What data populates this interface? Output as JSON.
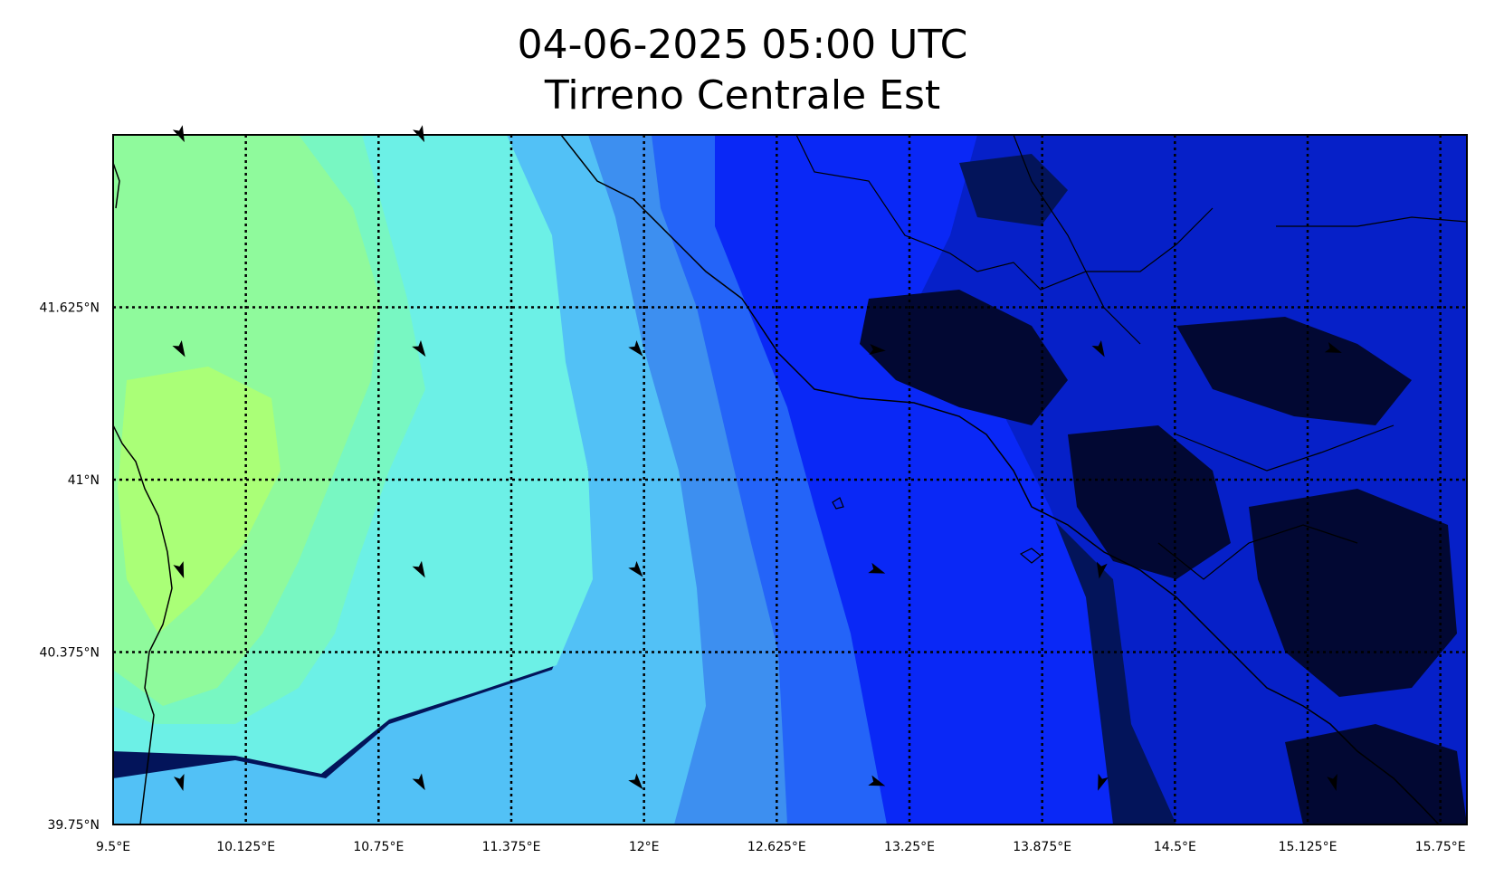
{
  "title": {
    "line1": "04-06-2025 05:00 UTC",
    "line2": "Tirreno Centrale Est"
  },
  "map": {
    "lon_range": [
      9.5,
      15.875
    ],
    "lat_range": [
      39.75,
      42.25
    ],
    "lon_ticks": [
      {
        "value": 9.5,
        "label": "9.5°E"
      },
      {
        "value": 10.125,
        "label": "10.125°E"
      },
      {
        "value": 10.75,
        "label": "10.75°E"
      },
      {
        "value": 11.375,
        "label": "11.375°E"
      },
      {
        "value": 12.0,
        "label": "12°E"
      },
      {
        "value": 12.625,
        "label": "12.625°E"
      },
      {
        "value": 13.25,
        "label": "13.25°E"
      },
      {
        "value": 13.875,
        "label": "13.875°E"
      },
      {
        "value": 14.5,
        "label": "14.5°E"
      },
      {
        "value": 15.125,
        "label": "15.125°E"
      },
      {
        "value": 15.75,
        "label": "15.75°E"
      }
    ],
    "lat_ticks": [
      {
        "value": 41.625,
        "label": "41.625°N"
      },
      {
        "value": 41.0,
        "label": "41°N"
      },
      {
        "value": 40.375,
        "label": "40.375°N"
      },
      {
        "value": 39.75,
        "label": "39.75°N"
      }
    ],
    "colors": {
      "band_1": "#aaff77",
      "band_2": "#8ffa9c",
      "band_3": "#78f7c2",
      "band_4": "#6cf0e6",
      "band_5": "#52c1f6",
      "band_6": "#3d8ff0",
      "band_7": "#2464f8",
      "band_8": "#0a28f6",
      "band_9": "#0620c8",
      "band_10": "#03145a",
      "land_dark": "#020833",
      "grid": "#000000"
    },
    "arrows": [
      {
        "lon": 9.82,
        "lat": 42.25,
        "dir": 155
      },
      {
        "lon": 10.95,
        "lat": 42.25,
        "dir": 155
      },
      {
        "lon": 9.82,
        "lat": 41.47,
        "dir": 150
      },
      {
        "lon": 10.95,
        "lat": 41.47,
        "dir": 145
      },
      {
        "lon": 11.97,
        "lat": 41.47,
        "dir": 140
      },
      {
        "lon": 13.1,
        "lat": 41.47,
        "dir": 95
      },
      {
        "lon": 14.15,
        "lat": 41.47,
        "dir": 150
      },
      {
        "lon": 15.25,
        "lat": 41.47,
        "dir": 110
      },
      {
        "lon": 9.82,
        "lat": 40.67,
        "dir": 160
      },
      {
        "lon": 10.95,
        "lat": 40.67,
        "dir": 150
      },
      {
        "lon": 11.97,
        "lat": 40.67,
        "dir": 140
      },
      {
        "lon": 13.1,
        "lat": 40.67,
        "dir": 110
      },
      {
        "lon": 14.15,
        "lat": 40.67,
        "dir": 190
      },
      {
        "lon": 9.82,
        "lat": 39.9,
        "dir": 165
      },
      {
        "lon": 10.95,
        "lat": 39.9,
        "dir": 150
      },
      {
        "lon": 11.97,
        "lat": 39.9,
        "dir": 140
      },
      {
        "lon": 13.1,
        "lat": 39.9,
        "dir": 110
      },
      {
        "lon": 14.15,
        "lat": 39.9,
        "dir": 200
      },
      {
        "lon": 15.25,
        "lat": 39.9,
        "dir": 165
      }
    ]
  }
}
